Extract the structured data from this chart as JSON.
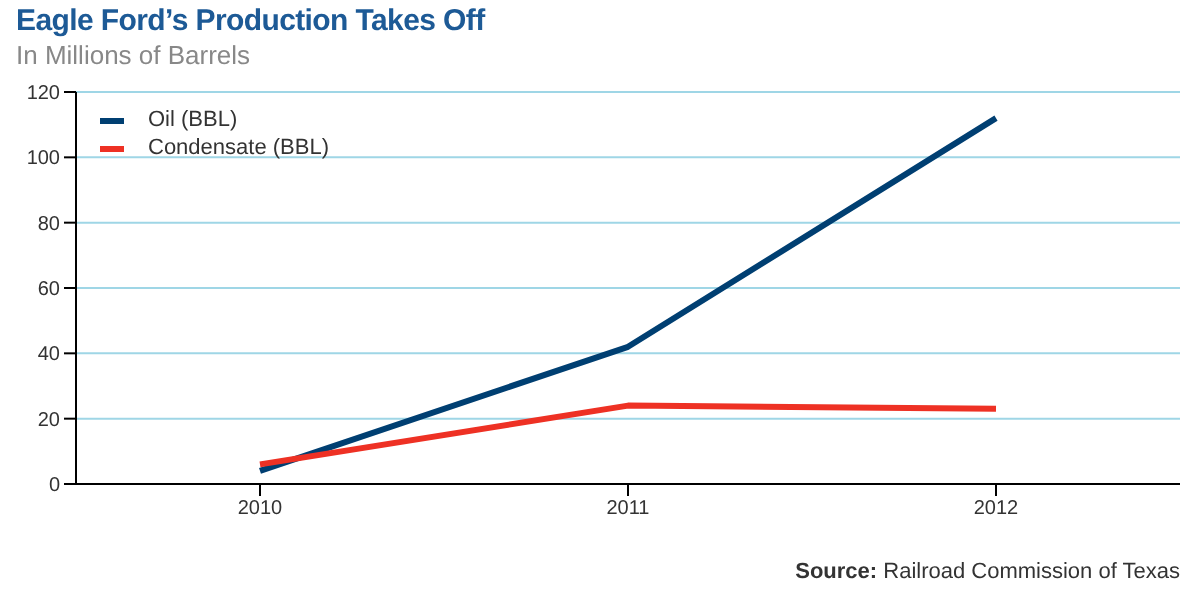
{
  "chart_data": {
    "type": "line",
    "title": "Eagle Ford’s Production Takes Off",
    "subtitle": "In Millions of Barrels",
    "categories": [
      "2010",
      "2011",
      "2012"
    ],
    "series": [
      {
        "name": "Oil (BBL)",
        "color": "#003f72",
        "values": [
          4,
          42,
          112
        ]
      },
      {
        "name": "Condensate (BBL)",
        "color": "#ee3124",
        "values": [
          6,
          24,
          23
        ]
      }
    ],
    "ylim": [
      0,
      120
    ],
    "yticks": [
      0,
      20,
      40,
      60,
      80,
      100,
      120
    ],
    "grid": "y",
    "legend": "top left",
    "marker": "none",
    "line_style": "solid",
    "annotations": [
      "Source: Railroad Commission of Texas"
    ]
  }
}
